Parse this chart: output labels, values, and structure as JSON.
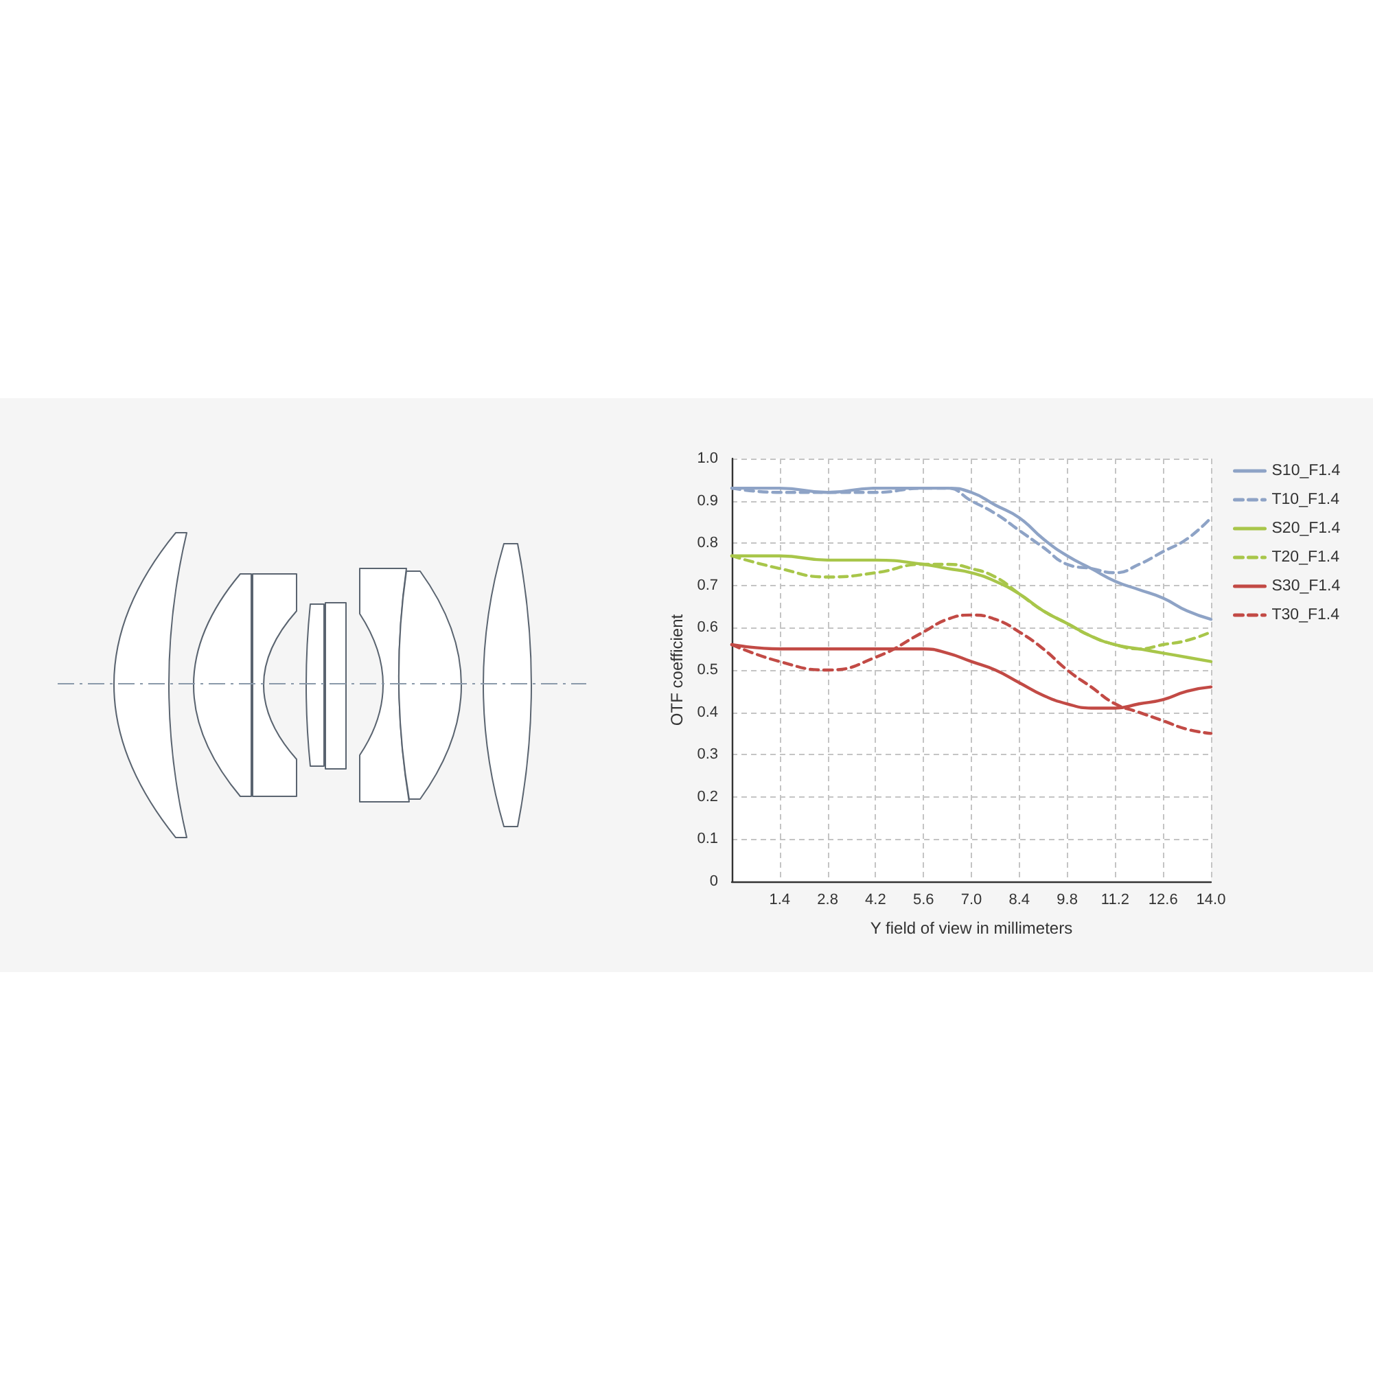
{
  "chart_data": {
    "type": "line",
    "xlabel": "Y field of view in millimeters",
    "ylabel": "OTF coefficient",
    "x": [
      0,
      1.4,
      2.8,
      4.2,
      5.6,
      6.3,
      7,
      7.7,
      8.4,
      9.1,
      9.8,
      10.5,
      11.2,
      11.9,
      12.6,
      13.3,
      14
    ],
    "series": [
      {
        "name": "S10_F1.4",
        "color": "#8ea3c6",
        "line_style": "solid",
        "values": [
          0.93,
          0.93,
          0.92,
          0.93,
          0.93,
          0.93,
          0.92,
          0.89,
          0.86,
          0.81,
          0.77,
          0.74,
          0.71,
          0.69,
          0.67,
          0.64,
          0.62
        ]
      },
      {
        "name": "T10_F1.4",
        "color": "#8ea3c6",
        "line_style": "dashed",
        "values": [
          0.93,
          0.92,
          0.92,
          0.92,
          0.93,
          0.93,
          0.9,
          0.87,
          0.83,
          0.79,
          0.75,
          0.74,
          0.73,
          0.75,
          0.78,
          0.81,
          0.86
        ]
      },
      {
        "name": "S20_F1.4",
        "color": "#a8c64a",
        "line_style": "solid",
        "values": [
          0.77,
          0.77,
          0.76,
          0.76,
          0.75,
          0.74,
          0.73,
          0.71,
          0.68,
          0.64,
          0.61,
          0.58,
          0.56,
          0.55,
          0.54,
          0.53,
          0.52
        ]
      },
      {
        "name": "T20_F1.4",
        "color": "#a8c64a",
        "line_style": "dashed",
        "values": [
          0.77,
          0.74,
          0.72,
          0.73,
          0.75,
          0.75,
          0.74,
          0.72,
          0.68,
          0.64,
          0.61,
          0.58,
          0.56,
          0.55,
          0.56,
          0.57,
          0.59
        ]
      },
      {
        "name": "S30_F1.4",
        "color": "#c24a45",
        "line_style": "solid",
        "values": [
          0.56,
          0.55,
          0.55,
          0.55,
          0.55,
          0.54,
          0.52,
          0.5,
          0.47,
          0.44,
          0.42,
          0.41,
          0.41,
          0.42,
          0.43,
          0.45,
          0.46
        ]
      },
      {
        "name": "T30_F1.4",
        "color": "#c24a45",
        "line_style": "dashed",
        "values": [
          0.56,
          0.52,
          0.5,
          0.53,
          0.59,
          0.62,
          0.63,
          0.62,
          0.59,
          0.55,
          0.5,
          0.46,
          0.42,
          0.4,
          0.38,
          0.36,
          0.35
        ]
      }
    ],
    "xlim": [
      0,
      14
    ],
    "xticks": [
      1.4,
      2.8,
      4.2,
      5.6,
      {
        "value": 7,
        "label": "7.0"
      },
      8.4,
      9.8,
      11.2,
      12.6,
      {
        "value": 14,
        "label": "14.0"
      }
    ],
    "ylim": [
      0,
      1
    ],
    "yticks": [
      0,
      0.1,
      0.2,
      0.3,
      0.4,
      0.5,
      0.6,
      0.7,
      0.8,
      0.9,
      {
        "value": 1,
        "label": "1.0"
      }
    ],
    "grid": true,
    "legend": "top right",
    "marker": "none"
  }
}
